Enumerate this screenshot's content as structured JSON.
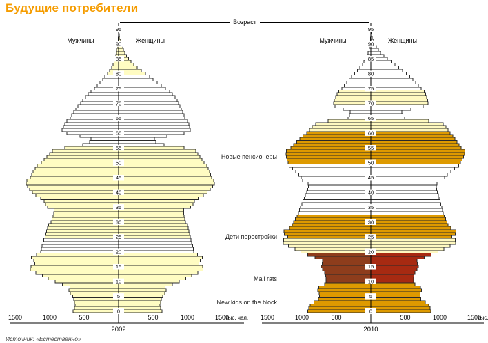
{
  "page": {
    "title": "Будущие потребители",
    "source": "Источник: «Естественно»",
    "accent_color": "#F59C00"
  },
  "labels": {
    "age_axis": "Возраст",
    "unit": "тыс. чел."
  },
  "annotations": [
    {
      "label": "Новые пенсионеры",
      "age": 52
    },
    {
      "label": "Дети перестройки",
      "age": 25
    },
    {
      "label": "Mall rats",
      "age": 11
    },
    {
      "label": "New kids on the block",
      "age": 3
    }
  ],
  "chart_data": [
    {
      "type": "bar",
      "subtype": "population_pyramid",
      "year": "2002",
      "male_label": "Мужчины",
      "female_label": "Женщины",
      "xlim": 1500,
      "x_ticks": [
        1500,
        1000,
        500,
        500,
        1000,
        1500
      ],
      "age_ticks": [
        0,
        5,
        10,
        15,
        20,
        25,
        30,
        35,
        40,
        45,
        50,
        55,
        60,
        65,
        70,
        75,
        80,
        85,
        90,
        95
      ],
      "male": [
        660,
        640,
        630,
        640,
        650,
        665,
        700,
        720,
        705,
        815,
        920,
        1020,
        1105,
        1200,
        1280,
        1270,
        1215,
        1230,
        1265,
        1190,
        1130,
        1120,
        1110,
        1095,
        1085,
        1065,
        1055,
        1045,
        1030,
        1015,
        980,
        965,
        950,
        940,
        935,
        1030,
        1060,
        1080,
        1130,
        1200,
        1250,
        1290,
        1320,
        1340,
        1330,
        1280,
        1260,
        1240,
        1210,
        1180,
        1120,
        1080,
        1040,
        1000,
        960,
        780,
        520,
        420,
        400,
        560,
        750,
        820,
        800,
        780,
        750,
        700,
        680,
        650,
        620,
        590,
        550,
        520,
        480,
        440,
        400,
        350,
        310,
        270,
        230,
        200,
        160,
        130,
        100,
        80,
        65,
        50,
        40,
        30,
        22,
        16,
        11,
        8,
        5,
        3,
        2,
        1
      ],
      "female": [
        630,
        610,
        600,
        610,
        620,
        640,
        670,
        690,
        675,
        780,
        880,
        975,
        1060,
        1150,
        1225,
        1220,
        1165,
        1185,
        1215,
        1145,
        1090,
        1085,
        1075,
        1060,
        1050,
        1040,
        1030,
        1020,
        1010,
        1000,
        970,
        960,
        950,
        945,
        945,
        1045,
        1080,
        1100,
        1155,
        1230,
        1285,
        1330,
        1365,
        1390,
        1380,
        1350,
        1335,
        1320,
        1300,
        1280,
        1240,
        1210,
        1180,
        1150,
        1120,
        950,
        660,
        540,
        520,
        700,
        950,
        1040,
        1030,
        1020,
        1000,
        960,
        950,
        930,
        910,
        890,
        870,
        850,
        820,
        780,
        740,
        680,
        620,
        560,
        500,
        450,
        390,
        330,
        270,
        220,
        180,
        145,
        115,
        90,
        70,
        52,
        38,
        27,
        19,
        13,
        8,
        5
      ],
      "bands": [
        {
          "from": 0,
          "to": 19,
          "fill": "#FFFCC2"
        },
        {
          "from": 20,
          "to": 24,
          "fill": "#FFFFFF"
        },
        {
          "from": 25,
          "to": 55,
          "fill": "#FFFCC2"
        },
        {
          "from": 56,
          "to": 79,
          "fill": "#FFFFFF"
        },
        {
          "from": 80,
          "to": 95,
          "fill": "#FFFCC2"
        }
      ]
    },
    {
      "type": "bar",
      "subtype": "population_pyramid",
      "year": "2010",
      "male_label": "Мужчины",
      "female_label": "Женщины",
      "xlim": 1500,
      "x_ticks": [
        1500,
        1000,
        500,
        500,
        1000,
        1500
      ],
      "age_ticks": [
        0,
        5,
        10,
        15,
        20,
        25,
        30,
        35,
        40,
        45,
        50,
        55,
        60,
        65,
        70,
        75,
        80,
        85,
        90,
        95
      ],
      "male": [
        915,
        900,
        880,
        825,
        760,
        745,
        750,
        770,
        755,
        672,
        650,
        650,
        655,
        670,
        700,
        720,
        705,
        700,
        810,
        915,
        1015,
        1100,
        1195,
        1270,
        1265,
        1205,
        1255,
        1260,
        1180,
        1140,
        1120,
        1095,
        1070,
        1050,
        1035,
        1020,
        1000,
        985,
        965,
        950,
        930,
        915,
        905,
        910,
        990,
        1010,
        1045,
        1090,
        1135,
        1185,
        1200,
        1215,
        1225,
        1230,
        1225,
        1160,
        1120,
        1075,
        1030,
        985,
        930,
        890,
        850,
        800,
        620,
        330,
        310,
        300,
        400,
        520,
        540,
        530,
        510,
        490,
        465,
        420,
        385,
        350,
        315,
        280,
        235,
        195,
        160,
        128,
        100,
        75,
        55,
        40,
        29,
        20,
        14,
        9,
        6,
        4,
        2,
        1
      ],
      "female": [
        870,
        860,
        840,
        790,
        725,
        715,
        715,
        735,
        720,
        640,
        620,
        620,
        625,
        640,
        670,
        690,
        675,
        670,
        775,
        875,
        975,
        1060,
        1150,
        1230,
        1225,
        1175,
        1225,
        1235,
        1160,
        1120,
        1105,
        1085,
        1065,
        1050,
        1040,
        1030,
        1015,
        1005,
        990,
        980,
        965,
        955,
        950,
        960,
        1045,
        1070,
        1110,
        1160,
        1215,
        1275,
        1300,
        1325,
        1345,
        1360,
        1365,
        1310,
        1280,
        1250,
        1220,
        1190,
        1150,
        1120,
        1090,
        1050,
        840,
        490,
        465,
        450,
        580,
        760,
        830,
        825,
        810,
        795,
        775,
        730,
        690,
        650,
        610,
        565,
        515,
        460,
        405,
        350,
        295,
        240,
        190,
        148,
        112,
        82,
        58,
        40,
        27,
        17,
        10,
        6
      ],
      "bands": [
        {
          "from": 0,
          "to": 9,
          "fill": "#DE9A00"
        },
        {
          "from": 10,
          "to": 19,
          "male_fill": "#8E3D1C",
          "female_fill": "#A72A12"
        },
        {
          "from": 20,
          "to": 24,
          "fill": "#FFF9C0"
        },
        {
          "from": 25,
          "to": 32,
          "fill": "#DE9A00"
        },
        {
          "from": 33,
          "to": 49,
          "fill": "#FFFFFF"
        },
        {
          "from": 50,
          "to": 60,
          "fill": "#DE9A00"
        },
        {
          "from": 61,
          "to": 64,
          "fill": "#FFF9C0"
        },
        {
          "from": 65,
          "to": 69,
          "fill": "#FFFFFF"
        },
        {
          "from": 70,
          "to": 74,
          "fill": "#FFF9C0"
        },
        {
          "from": 75,
          "to": 95,
          "fill": "#FFFFFF"
        }
      ]
    }
  ]
}
